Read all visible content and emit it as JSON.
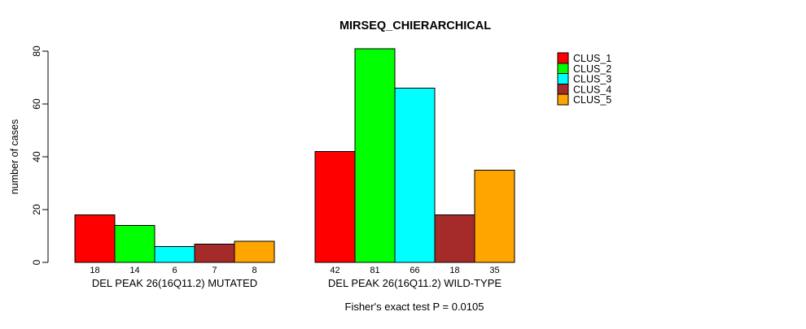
{
  "title": "MIRSEQ_CHIERARCHICAL",
  "footer": "Fisher's exact test P = 0.0105",
  "y_axis": {
    "label": "number of cases",
    "ticks": [
      0,
      20,
      40,
      60,
      80
    ],
    "range": [
      0,
      81
    ]
  },
  "chart_data": {
    "type": "bar",
    "title": "MIRSEQ_CHIERARCHICAL",
    "xlabel": "",
    "ylabel": "number of cases",
    "ylim": [
      0,
      81
    ],
    "yticks": [
      0,
      20,
      40,
      60,
      80
    ],
    "grid": false,
    "legend_position": "right-outside",
    "bar_outline_color": "#000000",
    "categories": [
      "DEL PEAK 26(16Q11.2) MUTATED",
      "DEL PEAK 26(16Q11.2) WILD-TYPE"
    ],
    "groups": [
      {
        "label": "DEL PEAK 26(16Q11.2) MUTATED",
        "values": [
          18,
          14,
          6,
          7,
          8
        ],
        "value_labels": [
          "18",
          "14",
          "6",
          "7",
          "8"
        ]
      },
      {
        "label": "DEL PEAK 26(16Q11.2) WILD-TYPE",
        "values": [
          42,
          81,
          66,
          18,
          35
        ],
        "value_labels": [
          "42",
          "81",
          "66",
          "18",
          "35"
        ]
      }
    ],
    "series": [
      {
        "name": "CLUS_1",
        "color": "#ff0000",
        "values": [
          18,
          42
        ]
      },
      {
        "name": "CLUS_2",
        "color": "#00ff00",
        "values": [
          14,
          81
        ]
      },
      {
        "name": "CLUS_3",
        "color": "#00ffff",
        "values": [
          6,
          66
        ]
      },
      {
        "name": "CLUS_4",
        "color": "#a52a2a",
        "values": [
          7,
          18
        ]
      },
      {
        "name": "CLUS_5",
        "color": "#ffa500",
        "values": [
          8,
          35
        ]
      }
    ],
    "legend": [
      {
        "label": "CLUS_1",
        "color": "#ff0000"
      },
      {
        "label": "CLUS_2",
        "color": "#00ff00"
      },
      {
        "label": "CLUS_3",
        "color": "#00ffff"
      },
      {
        "label": "CLUS_4",
        "color": "#a52a2a"
      },
      {
        "label": "CLUS_5",
        "color": "#ffa500"
      }
    ],
    "annotation": "Fisher's exact test P = 0.0105"
  }
}
